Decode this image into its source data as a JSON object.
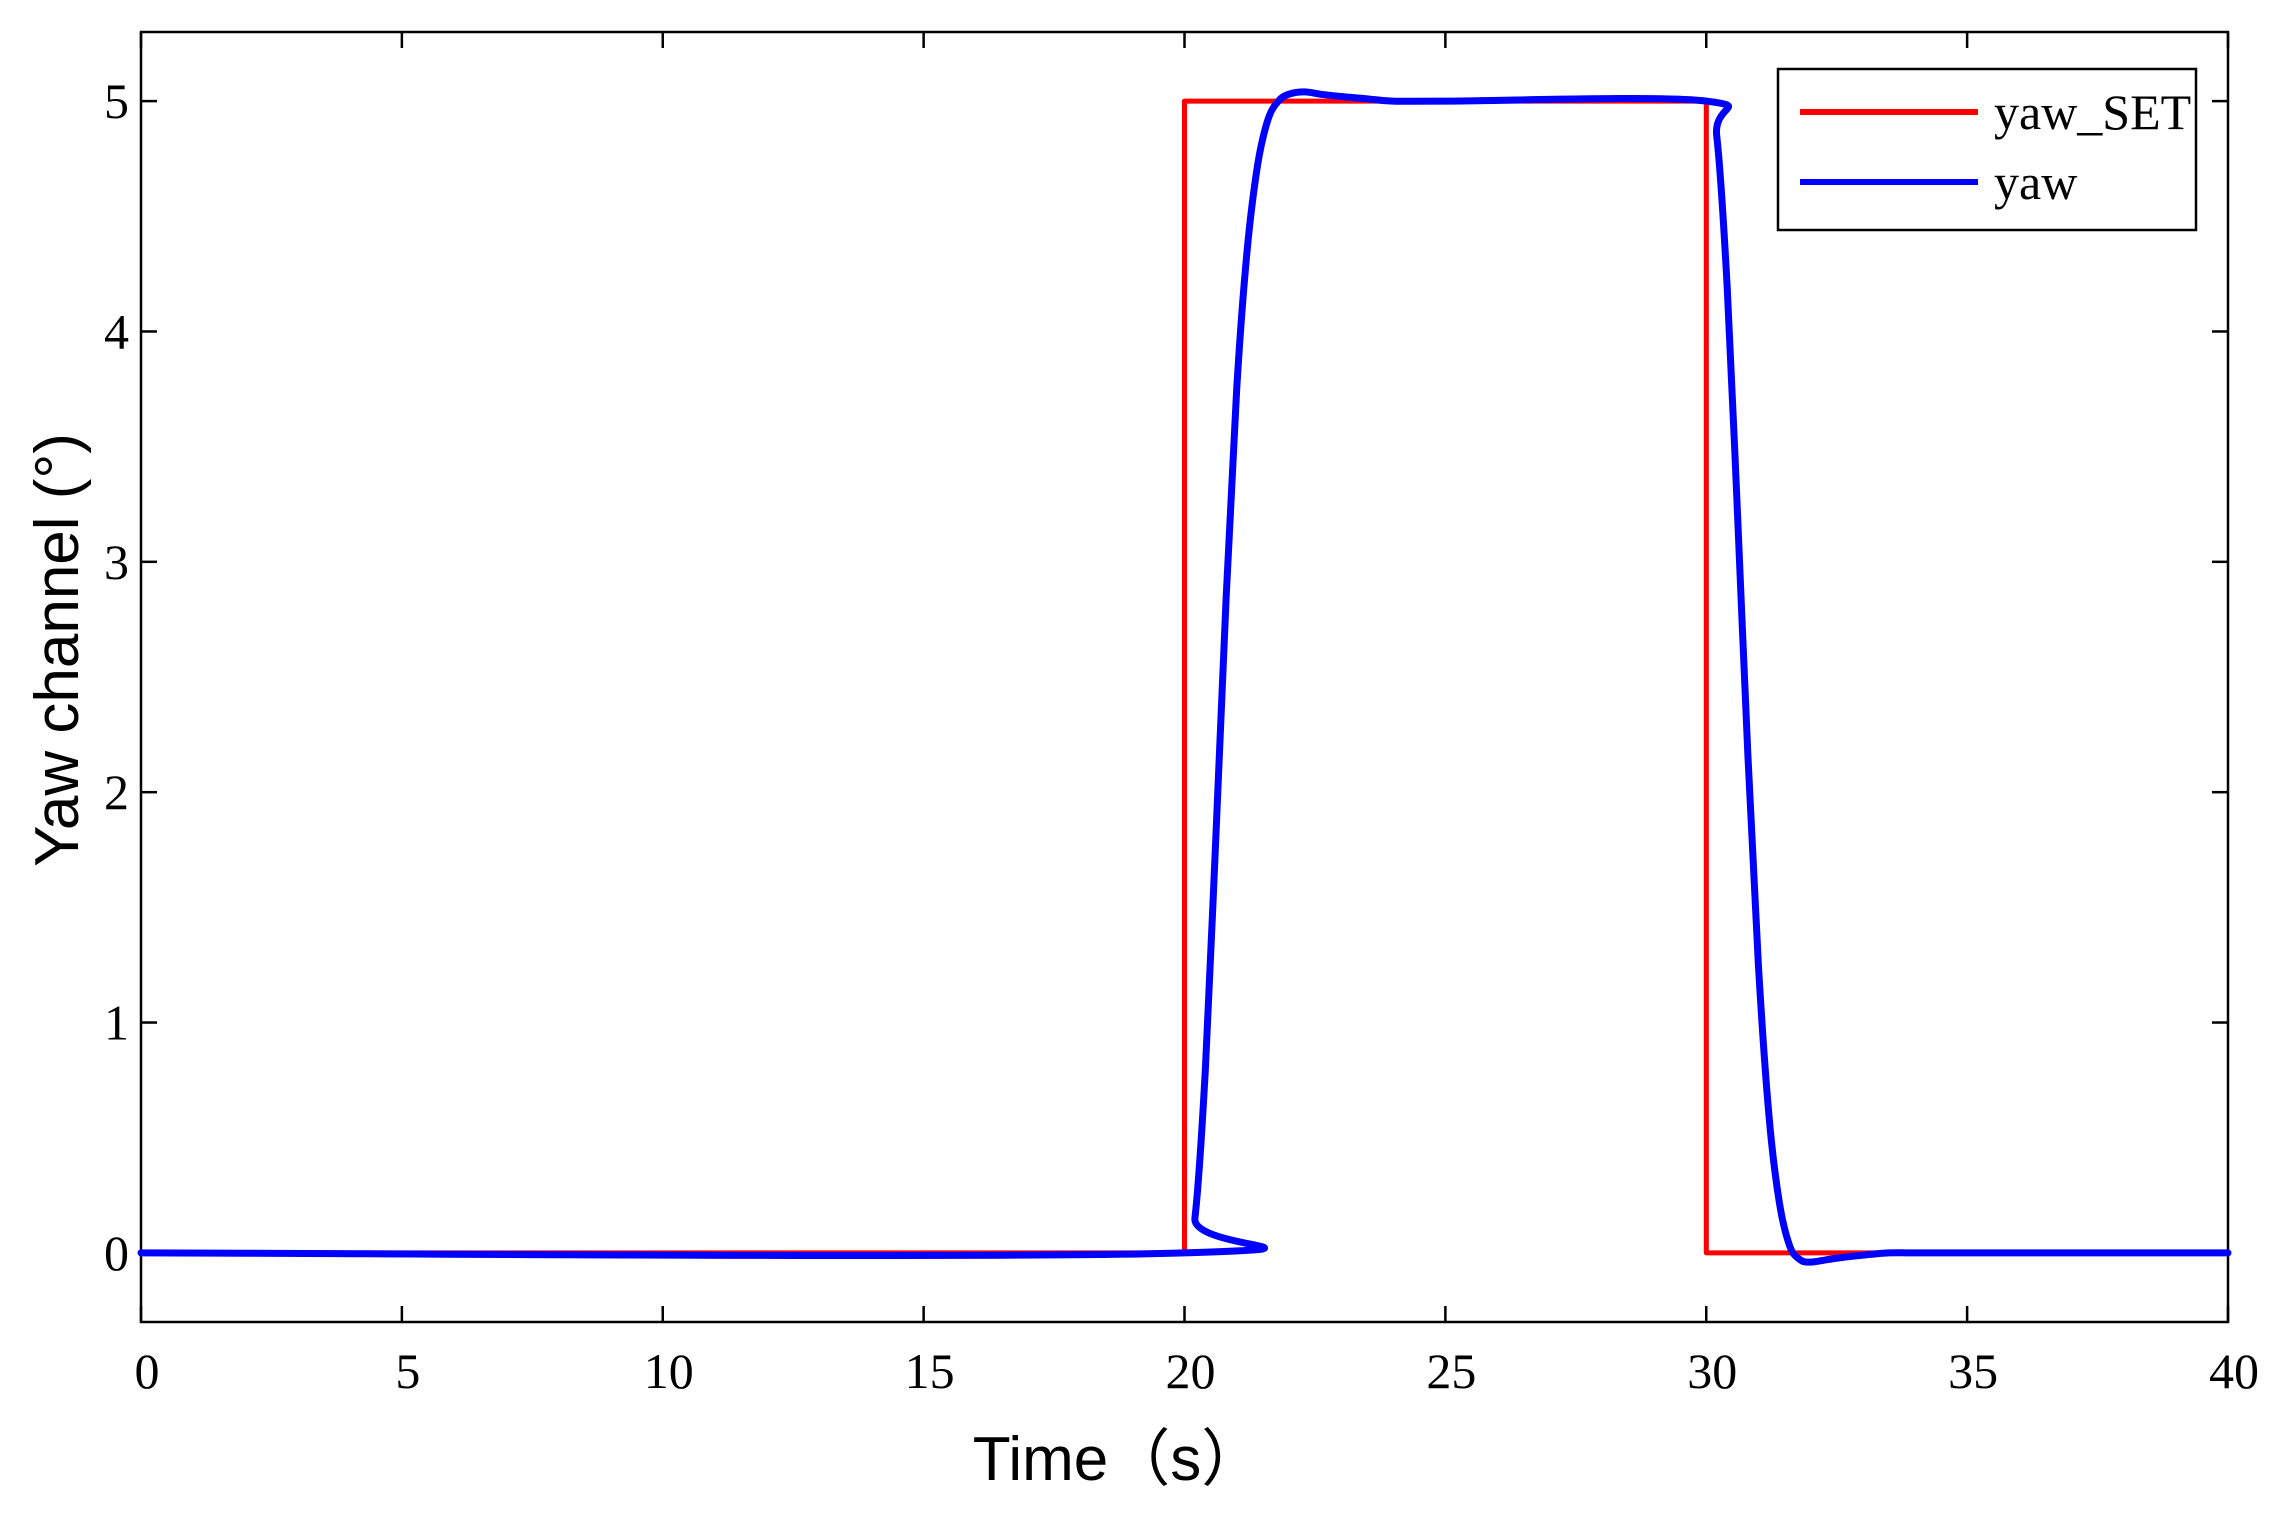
{
  "chart_data": {
    "type": "line",
    "title": "",
    "xlabel": "Time（s）",
    "ylabel": "Yaw channel (°)",
    "xlim": [
      0,
      40
    ],
    "ylim": [
      -0.3,
      5.3
    ],
    "x_ticks": [
      0,
      5,
      10,
      15,
      20,
      25,
      30,
      35,
      40
    ],
    "x_tick_labels": [
      "0",
      "5",
      "10",
      "15",
      "20",
      "25",
      "30",
      "35",
      "40"
    ],
    "y_ticks": [
      0,
      1,
      2,
      3,
      4,
      5
    ],
    "y_tick_labels": [
      "0",
      "1",
      "2",
      "3",
      "4",
      "5"
    ],
    "grid": false,
    "legend_position": "top-right",
    "series": [
      {
        "name": "yaw_SET",
        "color": "#ff0000",
        "x": [
          0,
          20,
          20,
          30,
          30,
          40
        ],
        "y": [
          0,
          0,
          5,
          5,
          0,
          0
        ]
      },
      {
        "name": "yaw",
        "color": "#0000ff",
        "x": [
          0,
          20,
          20.2,
          20.4,
          20.6,
          20.8,
          21.0,
          21.2,
          21.4,
          21.6,
          21.8,
          22.0,
          22.3,
          22.6,
          23.0,
          23.5,
          24.0,
          25.0,
          30.0,
          30.2,
          30.4,
          30.6,
          30.8,
          31.0,
          31.2,
          31.4,
          31.6,
          31.8,
          32.0,
          32.3,
          32.6,
          33.0,
          33.5,
          34.0,
          35.0,
          40.0
        ],
        "y": [
          0,
          0,
          0.15,
          0.8,
          1.8,
          2.85,
          3.75,
          4.35,
          4.72,
          4.92,
          5.0,
          5.03,
          5.04,
          5.03,
          5.02,
          5.01,
          5.0,
          5.0,
          5.0,
          4.85,
          4.2,
          3.2,
          2.15,
          1.25,
          0.6,
          0.22,
          0.03,
          -0.03,
          -0.04,
          -0.03,
          -0.02,
          -0.01,
          0,
          0,
          0,
          0
        ]
      }
    ]
  }
}
